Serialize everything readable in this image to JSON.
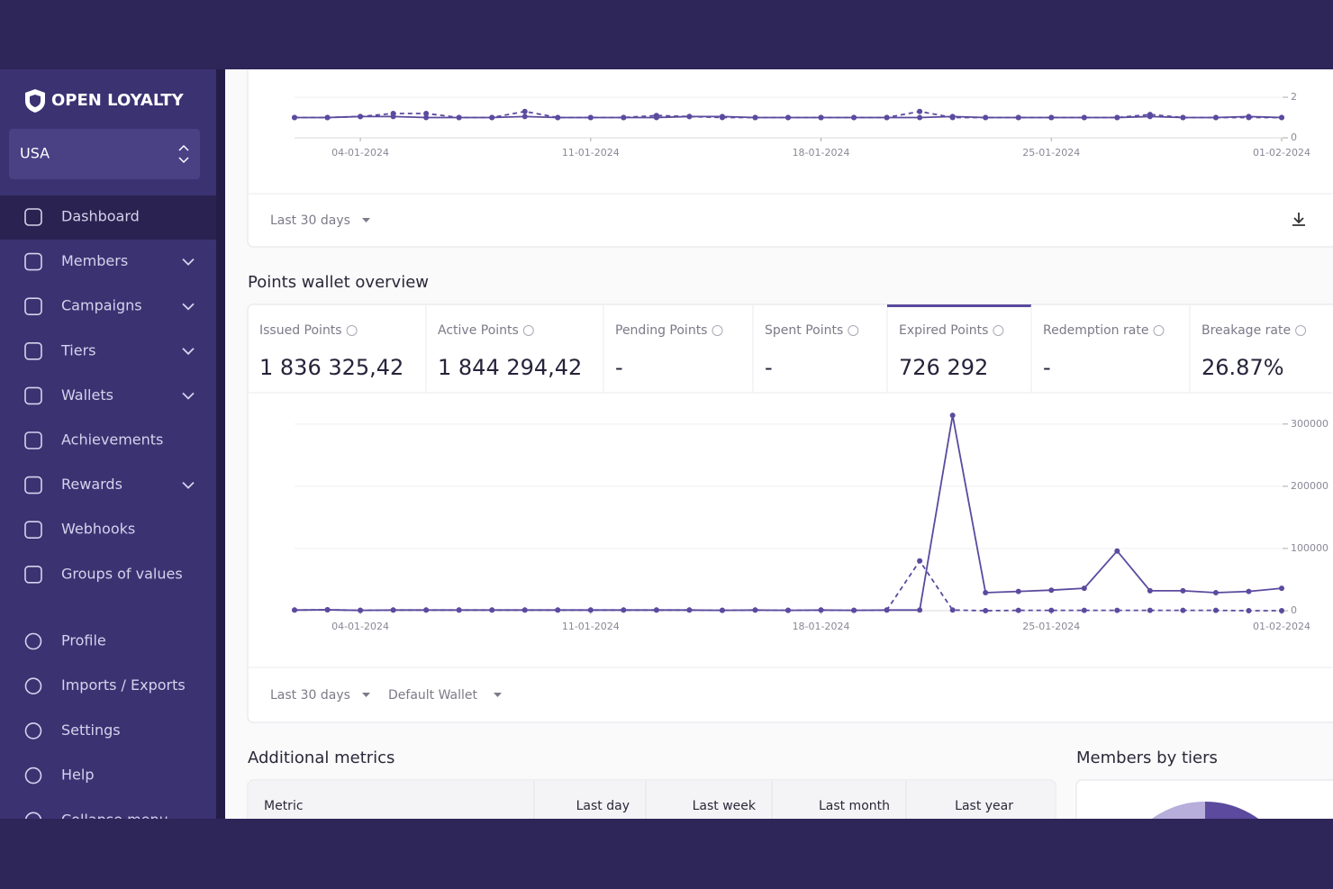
{
  "sidebar": {
    "brand": "OPEN LOYALTY",
    "region": "USA",
    "menu": [
      {
        "label": "Dashboard",
        "expandable": false
      },
      {
        "label": "Members",
        "expandable": true
      },
      {
        "label": "Campaigns",
        "expandable": true
      },
      {
        "label": "Tiers",
        "expandable": true
      },
      {
        "label": "Wallets",
        "expandable": true
      },
      {
        "label": "Achievements",
        "expandable": false
      },
      {
        "label": "Rewards",
        "expandable": true
      },
      {
        "label": "Webhooks",
        "expandable": false
      },
      {
        "label": "Groups of values",
        "expandable": false
      }
    ],
    "bottom_menu": [
      "Profile",
      "Imports / Exports",
      "Settings",
      "Help",
      "Collapse menu"
    ],
    "active": 0
  },
  "top_card": {
    "period": "Last 30 days"
  },
  "wallet": {
    "title": "Points wallet overview",
    "active": 4,
    "cards": [
      {
        "label": "Issued Points",
        "value": "1 836 325,42"
      },
      {
        "label": "Active Points",
        "value": "1 844 294,42"
      },
      {
        "label": "Pending Points",
        "value": "-"
      },
      {
        "label": "Spent Points",
        "value": "-"
      },
      {
        "label": "Expired Points",
        "value": "726 292"
      },
      {
        "label": "Redemption rate",
        "value": "-"
      },
      {
        "label": "Breakage rate",
        "value": "26.87%"
      }
    ],
    "period": "Last 30 days",
    "wallet": "Default Wallet"
  },
  "additional": {
    "title": "Additional metrics",
    "columns": [
      "Metric",
      "Last day",
      "Last week",
      "Last month",
      "Last year"
    ]
  },
  "tiers": {
    "title": "Members by tiers"
  },
  "chart_data": [
    {
      "type": "line",
      "x": [
        "02-01-2024",
        "03-01-2024",
        "04-01-2024",
        "05-01-2024",
        "06-01-2024",
        "07-01-2024",
        "08-01-2024",
        "09-01-2024",
        "10-01-2024",
        "11-01-2024",
        "12-01-2024",
        "13-01-2024",
        "14-01-2024",
        "15-01-2024",
        "16-01-2024",
        "17-01-2024",
        "18-01-2024",
        "19-01-2024",
        "20-01-2024",
        "21-01-2024",
        "22-01-2024",
        "23-01-2024",
        "24-01-2024",
        "25-01-2024",
        "26-01-2024",
        "27-01-2024",
        "28-01-2024",
        "29-01-2024",
        "30-01-2024",
        "31-01-2024",
        "01-02-2024"
      ],
      "xticks": [
        "04-01-2024",
        "11-01-2024",
        "18-01-2024",
        "25-01-2024",
        "01-02-2024"
      ],
      "series": [
        {
          "color": "#5b4a9e",
          "dash": false,
          "values": [
            1,
            1,
            1.05,
            1.05,
            1,
            1,
            1,
            1.05,
            1,
            1,
            1,
            1,
            1.05,
            1.05,
            1,
            1,
            1,
            1,
            1,
            1,
            1.05,
            1,
            1,
            1,
            1,
            1,
            1.05,
            1,
            1,
            1.05,
            1
          ]
        },
        {
          "color": "#5b4a9e",
          "dash": true,
          "values": [
            1,
            1,
            1.05,
            1.2,
            1.2,
            1,
            1,
            1.3,
            1,
            1,
            1,
            1.1,
            1.05,
            1,
            1,
            1,
            1,
            1,
            1,
            1.3,
            1,
            1,
            1,
            1,
            1,
            1,
            1.15,
            1,
            1,
            1,
            1
          ]
        }
      ],
      "ylim": [
        0,
        2
      ],
      "yticks": [
        0,
        2
      ]
    },
    {
      "type": "line",
      "x": [
        "02-01-2024",
        "03-01-2024",
        "04-01-2024",
        "05-01-2024",
        "06-01-2024",
        "07-01-2024",
        "08-01-2024",
        "09-01-2024",
        "10-01-2024",
        "11-01-2024",
        "12-01-2024",
        "13-01-2024",
        "14-01-2024",
        "15-01-2024",
        "16-01-2024",
        "17-01-2024",
        "18-01-2024",
        "19-01-2024",
        "20-01-2024",
        "21-01-2024",
        "22-01-2024",
        "23-01-2024",
        "24-01-2024",
        "25-01-2024",
        "26-01-2024",
        "27-01-2024",
        "28-01-2024",
        "29-01-2024",
        "30-01-2024",
        "31-01-2024",
        "01-02-2024"
      ],
      "xticks": [
        "04-01-2024",
        "11-01-2024",
        "18-01-2024",
        "25-01-2024",
        "01-02-2024"
      ],
      "series": [
        {
          "color": "#5b4a9e",
          "dash": false,
          "values": [
            1000,
            1500,
            500,
            1000,
            1000,
            1000,
            1000,
            1000,
            1000,
            1000,
            1000,
            1000,
            1000,
            500,
            1000,
            500,
            1000,
            500,
            1000,
            1000,
            314000,
            29000,
            31000,
            33000,
            36000,
            96000,
            32000,
            32000,
            29000,
            31000,
            36000
          ]
        },
        {
          "color": "#5b4a9e",
          "dash": true,
          "values": [
            1000,
            1500,
            500,
            1000,
            1000,
            1000,
            1000,
            1000,
            1000,
            1000,
            1000,
            1000,
            1000,
            500,
            1000,
            500,
            1000,
            500,
            1000,
            80000,
            1000,
            0,
            500,
            500,
            500,
            500,
            500,
            500,
            500,
            0,
            0
          ]
        }
      ],
      "ylim": [
        0,
        320000
      ],
      "yticks": [
        0,
        100000,
        200000,
        300000
      ]
    }
  ]
}
